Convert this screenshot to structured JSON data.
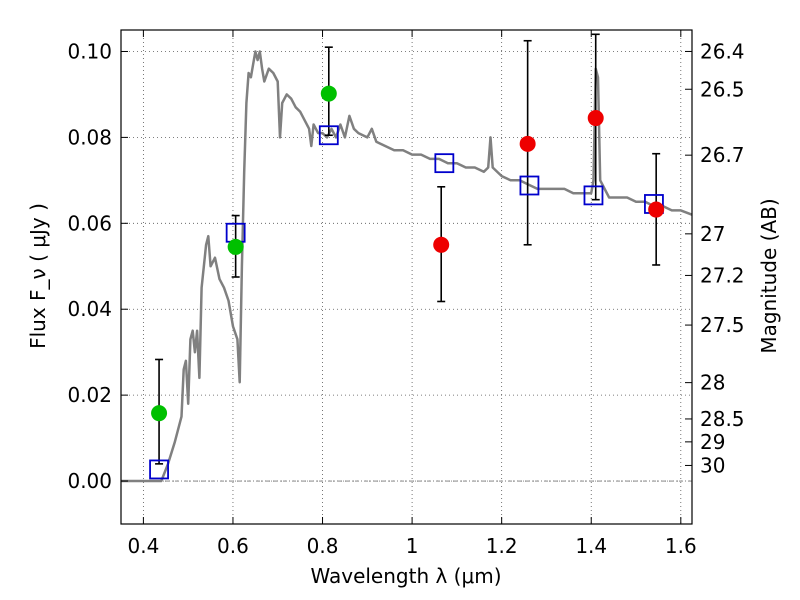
{
  "chart_data": {
    "type": "scatter",
    "xlabel": "Wavelength  λ (μm)",
    "ylabel": "Flux  F_ν  ( μJy )",
    "ylabel_right": "Magnitude (AB)",
    "xlim": [
      0.35,
      1.625
    ],
    "ylim": [
      -0.01,
      0.105
    ],
    "grid": true,
    "x_ticks": [
      0.4,
      0.6,
      0.8,
      1.0,
      1.2,
      1.4,
      1.6
    ],
    "x_tick_labels": [
      "0.4",
      "0.6",
      "0.8",
      "1",
      "1.2",
      "1.4",
      "1.6"
    ],
    "y_ticks": [
      0.0,
      0.02,
      0.04,
      0.06,
      0.08,
      0.1
    ],
    "y_tick_labels": [
      "0.00",
      "0.02",
      "0.04",
      "0.06",
      "0.08",
      "0.10"
    ],
    "mag_ticks": [
      26.4,
      26.5,
      26.7,
      27,
      27.2,
      27.5,
      28,
      28.5,
      29,
      30
    ],
    "mag_tick_labels": [
      "26.4",
      "26.5",
      "26.7",
      "27",
      "27.2",
      "27.5",
      "28",
      "28.5",
      "29",
      "30"
    ],
    "green_points": {
      "color": "#00c000",
      "points": [
        {
          "x": 0.435,
          "y": 0.0158,
          "lo": 0.004,
          "hi": 0.0283
        },
        {
          "x": 0.606,
          "y": 0.0545,
          "lo": 0.0475,
          "hi": 0.0618
        },
        {
          "x": 0.814,
          "y": 0.0902,
          "lo": 0.0805,
          "hi": 0.101
        }
      ]
    },
    "red_points": {
      "color": "#ee0000",
      "points": [
        {
          "x": 1.065,
          "y": 0.055,
          "lo": 0.0418,
          "hi": 0.0685
        },
        {
          "x": 1.258,
          "y": 0.0785,
          "lo": 0.055,
          "hi": 0.1025
        },
        {
          "x": 1.41,
          "y": 0.0845,
          "lo": 0.0655,
          "hi": 0.104
        },
        {
          "x": 1.545,
          "y": 0.0632,
          "lo": 0.0503,
          "hi": 0.0762
        }
      ]
    },
    "model_squares": {
      "color": "#0000cc",
      "points": [
        {
          "x": 0.435,
          "y": 0.0027
        },
        {
          "x": 0.606,
          "y": 0.0578
        },
        {
          "x": 0.814,
          "y": 0.0805
        },
        {
          "x": 1.072,
          "y": 0.074
        },
        {
          "x": 1.262,
          "y": 0.0688
        },
        {
          "x": 1.405,
          "y": 0.0665
        },
        {
          "x": 1.54,
          "y": 0.0645
        }
      ]
    },
    "model_spectrum": {
      "color": "#808080",
      "points": [
        [
          0.35,
          0.0
        ],
        [
          0.44,
          0.0
        ],
        [
          0.455,
          0.004
        ],
        [
          0.47,
          0.009
        ],
        [
          0.485,
          0.015
        ],
        [
          0.49,
          0.026
        ],
        [
          0.495,
          0.028
        ],
        [
          0.5,
          0.018
        ],
        [
          0.505,
          0.033
        ],
        [
          0.51,
          0.035
        ],
        [
          0.515,
          0.03
        ],
        [
          0.52,
          0.035
        ],
        [
          0.525,
          0.024
        ],
        [
          0.53,
          0.045
        ],
        [
          0.54,
          0.055
        ],
        [
          0.545,
          0.057
        ],
        [
          0.55,
          0.05
        ],
        [
          0.56,
          0.052
        ],
        [
          0.57,
          0.047
        ],
        [
          0.58,
          0.045
        ],
        [
          0.59,
          0.042
        ],
        [
          0.6,
          0.036
        ],
        [
          0.61,
          0.033
        ],
        [
          0.615,
          0.023
        ],
        [
          0.62,
          0.05
        ],
        [
          0.625,
          0.072
        ],
        [
          0.63,
          0.088
        ],
        [
          0.635,
          0.095
        ],
        [
          0.64,
          0.094
        ],
        [
          0.645,
          0.097
        ],
        [
          0.65,
          0.1
        ],
        [
          0.655,
          0.098
        ],
        [
          0.66,
          0.1
        ],
        [
          0.665,
          0.096
        ],
        [
          0.67,
          0.093
        ],
        [
          0.68,
          0.096
        ],
        [
          0.69,
          0.095
        ],
        [
          0.7,
          0.093
        ],
        [
          0.705,
          0.08
        ],
        [
          0.71,
          0.088
        ],
        [
          0.72,
          0.09
        ],
        [
          0.73,
          0.089
        ],
        [
          0.74,
          0.087
        ],
        [
          0.75,
          0.086
        ],
        [
          0.76,
          0.084
        ],
        [
          0.77,
          0.082
        ],
        [
          0.775,
          0.078
        ],
        [
          0.78,
          0.083
        ],
        [
          0.79,
          0.081
        ],
        [
          0.8,
          0.081
        ],
        [
          0.81,
          0.08
        ],
        [
          0.82,
          0.082
        ],
        [
          0.83,
          0.08
        ],
        [
          0.84,
          0.083
        ],
        [
          0.85,
          0.08
        ],
        [
          0.86,
          0.085
        ],
        [
          0.87,
          0.082
        ],
        [
          0.88,
          0.081
        ],
        [
          0.9,
          0.08
        ],
        [
          0.91,
          0.082
        ],
        [
          0.92,
          0.079
        ],
        [
          0.94,
          0.078
        ],
        [
          0.96,
          0.077
        ],
        [
          0.98,
          0.077
        ],
        [
          1.0,
          0.076
        ],
        [
          1.02,
          0.076
        ],
        [
          1.04,
          0.075
        ],
        [
          1.06,
          0.075
        ],
        [
          1.08,
          0.074
        ],
        [
          1.1,
          0.074
        ],
        [
          1.12,
          0.073
        ],
        [
          1.14,
          0.073
        ],
        [
          1.16,
          0.072
        ],
        [
          1.17,
          0.073
        ],
        [
          1.175,
          0.08
        ],
        [
          1.18,
          0.073
        ],
        [
          1.2,
          0.071
        ],
        [
          1.22,
          0.07
        ],
        [
          1.24,
          0.07
        ],
        [
          1.26,
          0.069
        ],
        [
          1.28,
          0.068
        ],
        [
          1.3,
          0.068
        ],
        [
          1.32,
          0.068
        ],
        [
          1.34,
          0.068
        ],
        [
          1.36,
          0.067
        ],
        [
          1.38,
          0.067
        ],
        [
          1.4,
          0.067
        ],
        [
          1.405,
          0.07
        ],
        [
          1.41,
          0.096
        ],
        [
          1.415,
          0.094
        ],
        [
          1.42,
          0.07
        ],
        [
          1.44,
          0.066
        ],
        [
          1.46,
          0.066
        ],
        [
          1.48,
          0.066
        ],
        [
          1.5,
          0.065
        ],
        [
          1.52,
          0.065
        ],
        [
          1.54,
          0.064
        ],
        [
          1.56,
          0.064
        ],
        [
          1.58,
          0.063
        ],
        [
          1.6,
          0.063
        ],
        [
          1.625,
          0.062
        ]
      ]
    }
  }
}
